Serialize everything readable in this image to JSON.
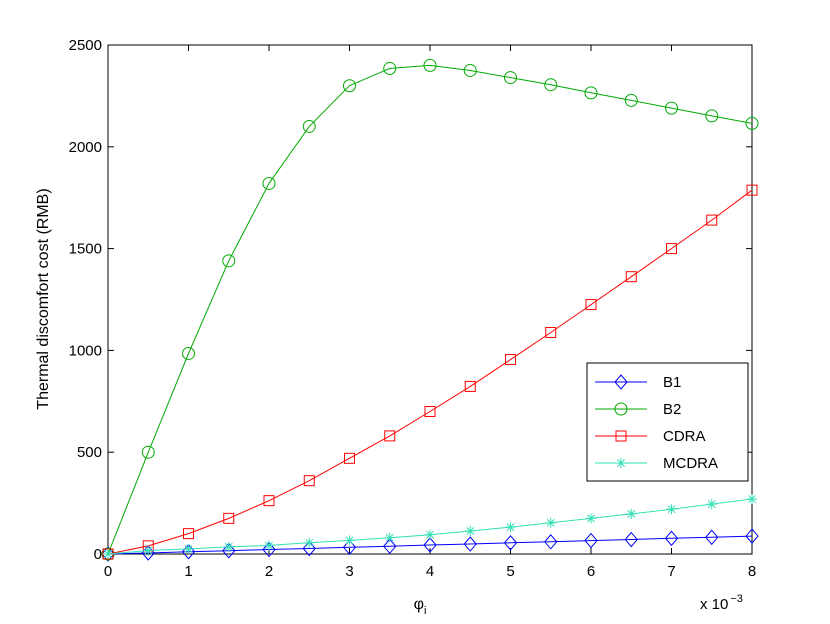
{
  "chart_data": {
    "type": "line",
    "xlabel": "φ",
    "xlabel_subscript": "i",
    "ylabel": "Thermal discomfort cost (RMB)",
    "x_multiplier_base": "x 10",
    "x_multiplier_exponent": "−3",
    "xlim": [
      0,
      8
    ],
    "ylim": [
      0,
      2500
    ],
    "xticks": [
      0,
      1,
      2,
      3,
      4,
      5,
      6,
      7,
      8
    ],
    "yticks": [
      0,
      500,
      1000,
      1500,
      2000,
      2500
    ],
    "grid": false,
    "legend_position": "right",
    "x": [
      0,
      0.5,
      1,
      1.5,
      2,
      2.5,
      3,
      3.5,
      4,
      4.5,
      5,
      5.5,
      6,
      6.5,
      7,
      7.5,
      8
    ],
    "series": [
      {
        "name": "B1",
        "color": "#0000ff",
        "marker": "diamond",
        "values": [
          0,
          5,
          11,
          16,
          22,
          27,
          33,
          38,
          44,
          49,
          55,
          60,
          66,
          71,
          77,
          82,
          88
        ]
      },
      {
        "name": "B2",
        "color": "#00aa00",
        "marker": "circle",
        "values": [
          0,
          500,
          985,
          1440,
          1820,
          2100,
          2300,
          2385,
          2400,
          2375,
          2340,
          2305,
          2265,
          2228,
          2190,
          2152,
          2115
        ]
      },
      {
        "name": "CDRA",
        "color": "#ff0000",
        "marker": "square",
        "values": [
          0,
          40,
          100,
          175,
          262,
          360,
          470,
          580,
          700,
          823,
          955,
          1088,
          1225,
          1362,
          1500,
          1640,
          1787
        ]
      },
      {
        "name": "MCDRA",
        "color": "#33e0b5",
        "marker": "asterisk",
        "values": [
          0,
          17,
          25,
          35,
          42,
          55,
          67,
          80,
          95,
          113,
          132,
          153,
          175,
          197,
          220,
          245,
          270
        ]
      }
    ]
  }
}
